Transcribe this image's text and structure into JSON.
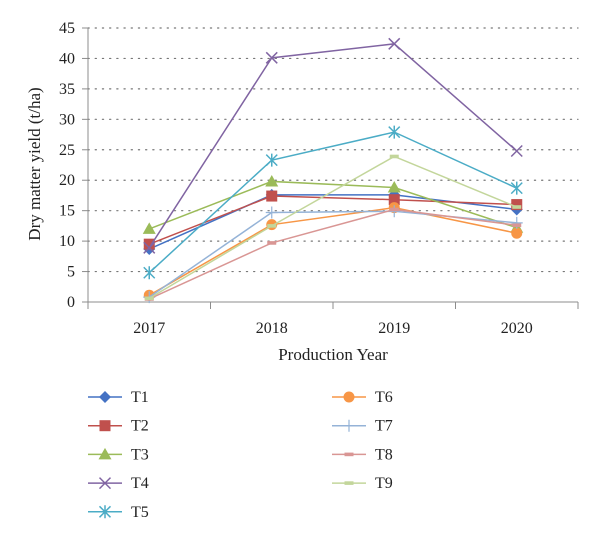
{
  "chart_data": {
    "type": "line",
    "title": "",
    "xlabel": "Production Year",
    "ylabel": "Dry matter yield (t/ha)",
    "categories": [
      "2017",
      "2018",
      "2019",
      "2020"
    ],
    "ylim": [
      0,
      45
    ],
    "yticks": [
      0,
      5,
      10,
      15,
      20,
      25,
      30,
      35,
      40,
      45
    ],
    "grid": "horizontal-dotted",
    "legend_position": "bottom",
    "series": [
      {
        "name": "T1",
        "values": [
          8.7,
          17.6,
          17.6,
          15.2
        ],
        "color": "#4472C4",
        "marker": "diamond"
      },
      {
        "name": "T2",
        "values": [
          9.5,
          17.4,
          16.8,
          16.0
        ],
        "color": "#C0504D",
        "marker": "square"
      },
      {
        "name": "T3",
        "values": [
          12.0,
          19.8,
          18.8,
          12.2
        ],
        "color": "#9BBB59",
        "marker": "triangle"
      },
      {
        "name": "T4",
        "values": [
          8.9,
          40.1,
          42.4,
          24.8
        ],
        "color": "#8064A2",
        "marker": "x"
      },
      {
        "name": "T5",
        "values": [
          4.8,
          23.3,
          27.9,
          18.7
        ],
        "color": "#4BACC6",
        "marker": "star"
      },
      {
        "name": "T6",
        "values": [
          1.1,
          12.7,
          15.5,
          11.3
        ],
        "color": "#F79646",
        "marker": "circle"
      },
      {
        "name": "T7",
        "values": [
          0.8,
          14.7,
          14.9,
          13.0
        ],
        "color": "#95B3D7",
        "marker": "plus"
      },
      {
        "name": "T8",
        "values": [
          0.5,
          9.7,
          15.2,
          12.6
        ],
        "color": "#D99694",
        "marker": "dash"
      },
      {
        "name": "T9",
        "values": [
          0.6,
          12.5,
          23.9,
          15.6
        ],
        "color": "#C3D69B",
        "marker": "dash"
      }
    ]
  }
}
